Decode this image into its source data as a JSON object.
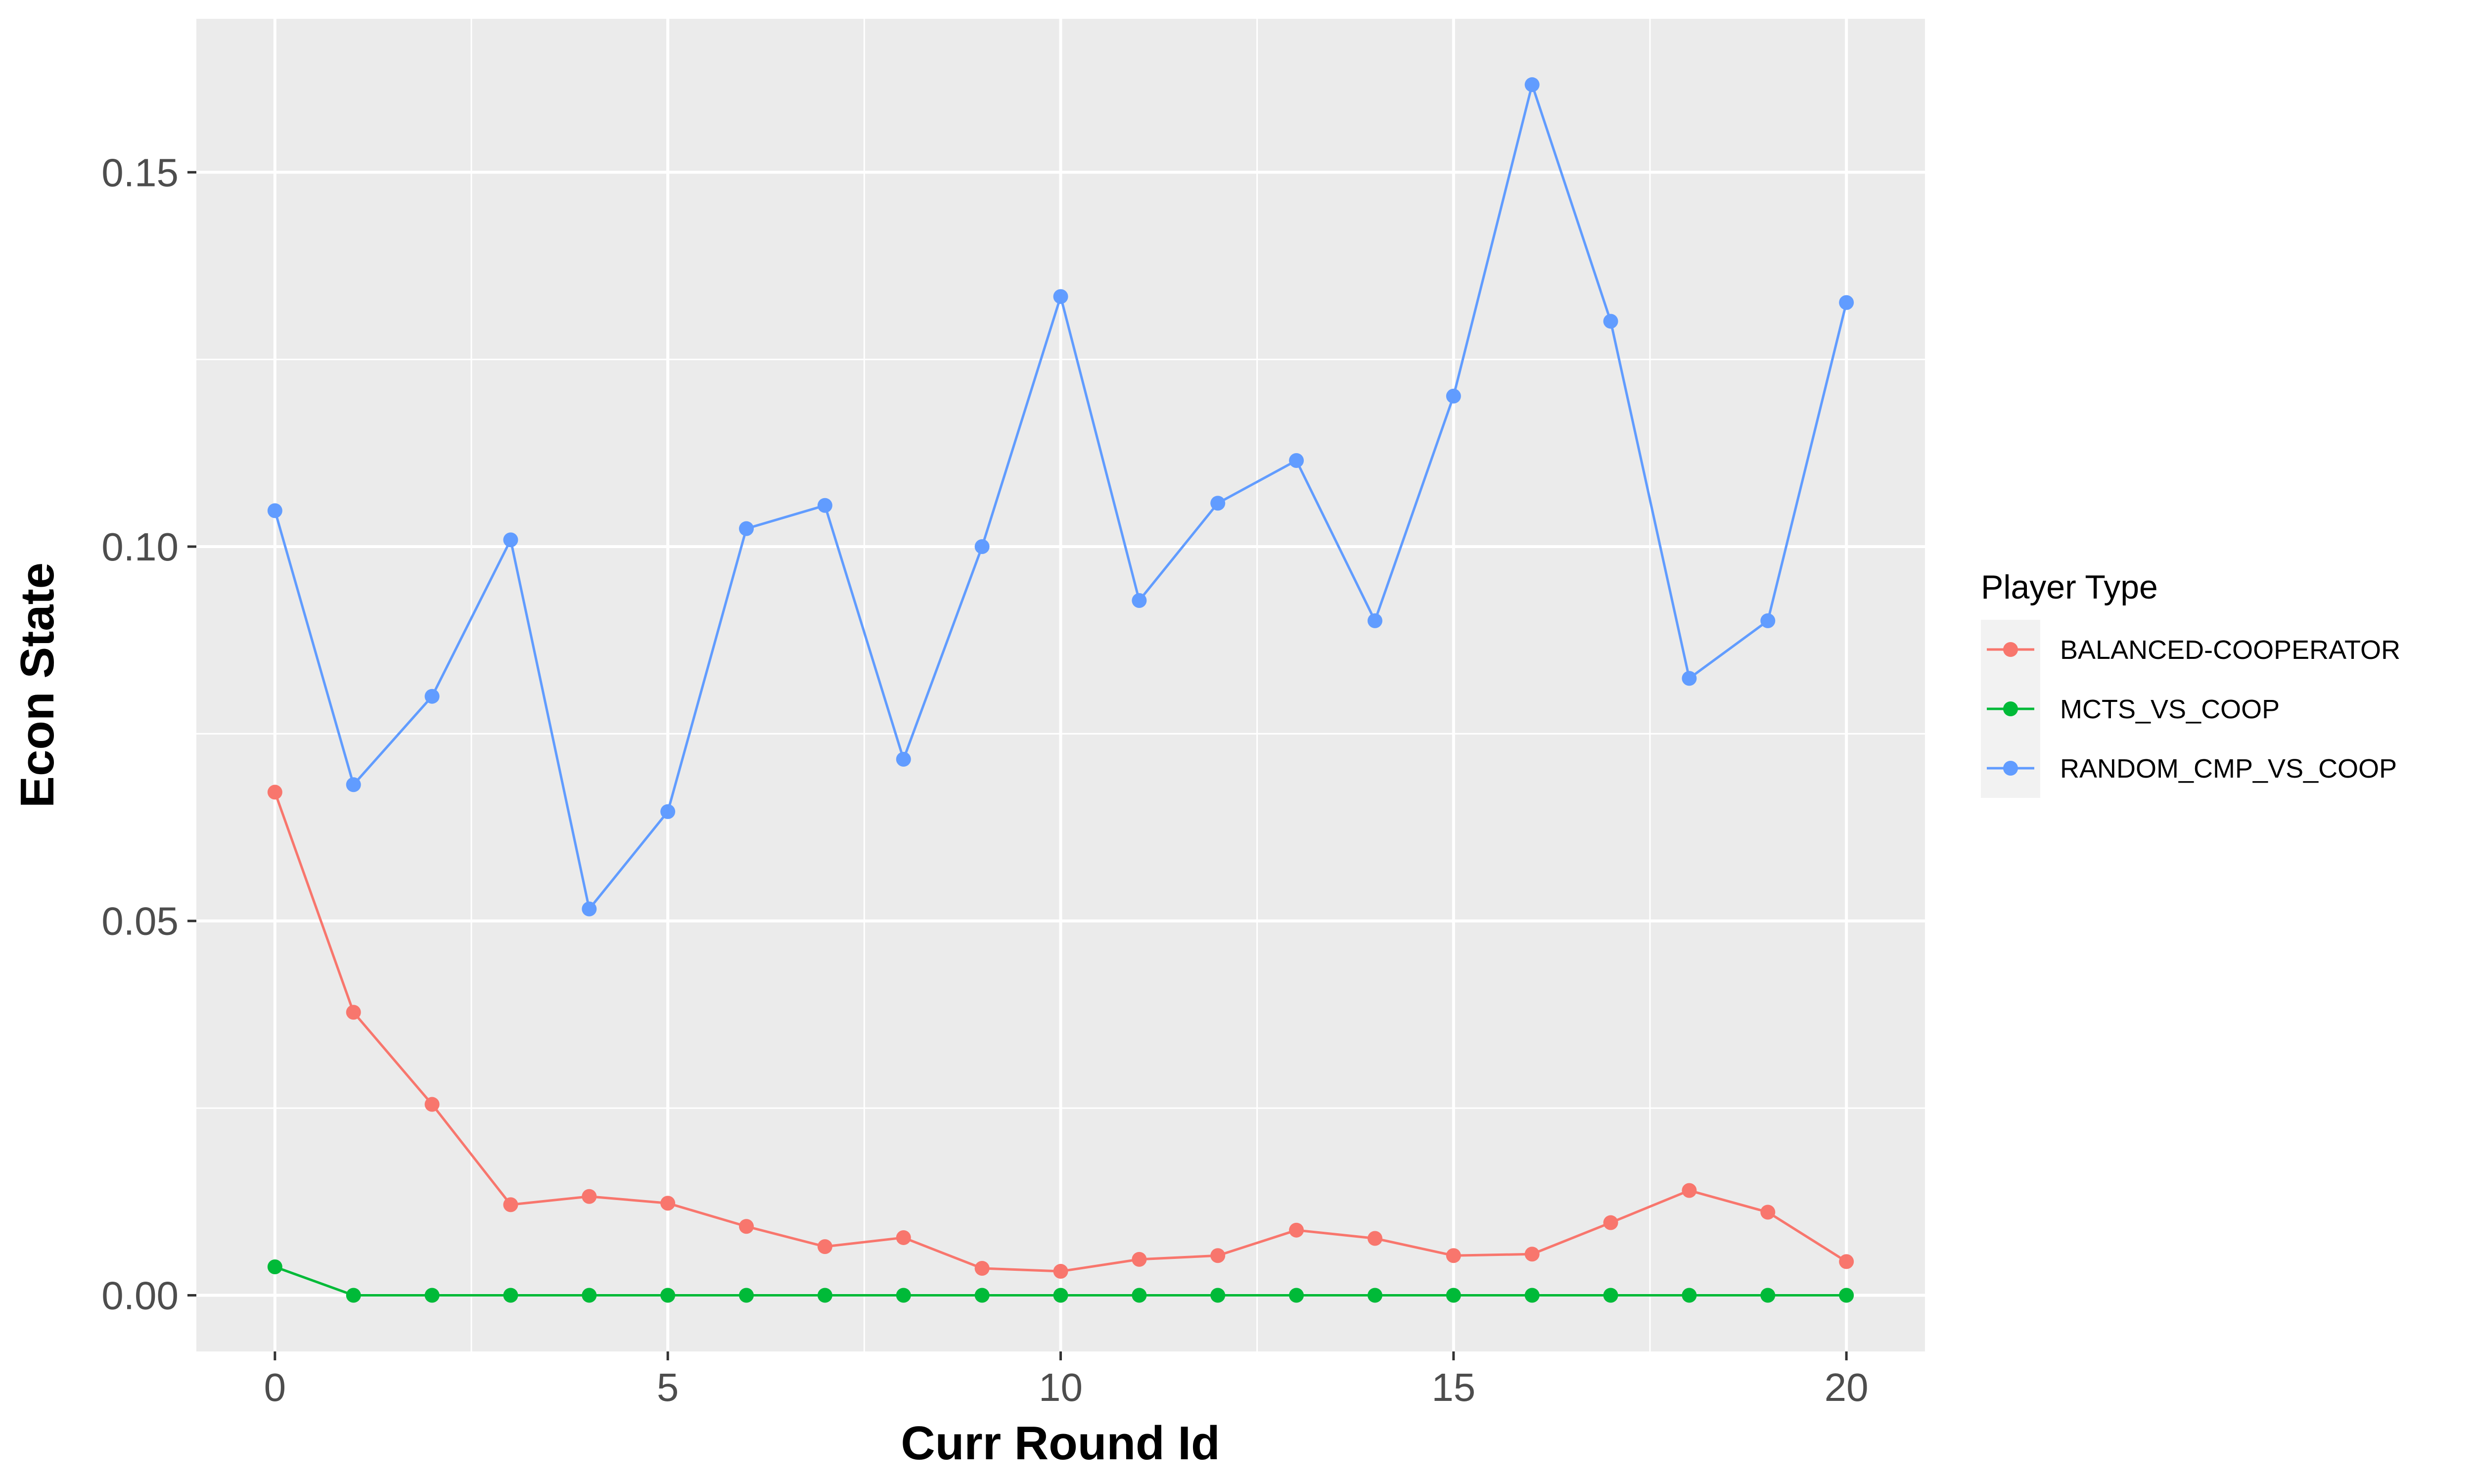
{
  "chart_data": {
    "type": "line",
    "xlabel": "Curr Round Id",
    "ylabel": "Econ State",
    "xlim": [
      -1,
      21
    ],
    "ylim": [
      -0.0075,
      0.1705
    ],
    "x_ticks": [
      0,
      5,
      10,
      15,
      20
    ],
    "x_tick_labels": [
      "0",
      "5",
      "10",
      "15",
      "20"
    ],
    "x_minor_ticks": [
      2.5,
      7.5,
      12.5,
      17.5
    ],
    "y_ticks": [
      0.0,
      0.05,
      0.1,
      0.15
    ],
    "y_tick_labels": [
      "0.00",
      "0.05",
      "0.10",
      "0.15"
    ],
    "y_minor_ticks": [
      0.025,
      0.075,
      0.125
    ],
    "grid": true,
    "legend": {
      "title": "Player Type",
      "placement": "right"
    },
    "x": [
      0,
      1,
      2,
      3,
      4,
      5,
      6,
      7,
      8,
      9,
      10,
      11,
      12,
      13,
      14,
      15,
      16,
      17,
      18,
      19,
      20
    ],
    "series": [
      {
        "name": "BALANCED-COOPERATOR",
        "color": "#F8766D",
        "values": [
          0.0672,
          0.0378,
          0.0255,
          0.0121,
          0.0132,
          0.0123,
          0.0092,
          0.0065,
          0.0077,
          0.0036,
          0.0032,
          0.0048,
          0.0053,
          0.0087,
          0.0076,
          0.0053,
          0.0055,
          0.0097,
          0.014,
          0.0111,
          0.0045
        ]
      },
      {
        "name": "MCTS_VS_COOP",
        "color": "#00BA38",
        "values": [
          0.0038,
          0.0,
          0.0,
          0.0,
          0.0,
          0.0,
          0.0,
          0.0,
          0.0,
          0.0,
          0.0,
          0.0,
          0.0,
          0.0,
          0.0,
          0.0,
          0.0,
          0.0,
          0.0,
          0.0,
          0.0
        ]
      },
      {
        "name": "RANDOM_CMP_VS_COOP",
        "color": "#619CFF",
        "values": [
          0.1048,
          0.0682,
          0.08,
          0.1009,
          0.0516,
          0.0646,
          0.1024,
          0.1055,
          0.0716,
          0.1,
          0.1334,
          0.0928,
          0.1058,
          0.1115,
          0.0901,
          0.1201,
          0.1617,
          0.1301,
          0.0824,
          0.0901,
          0.1326
        ]
      }
    ]
  }
}
